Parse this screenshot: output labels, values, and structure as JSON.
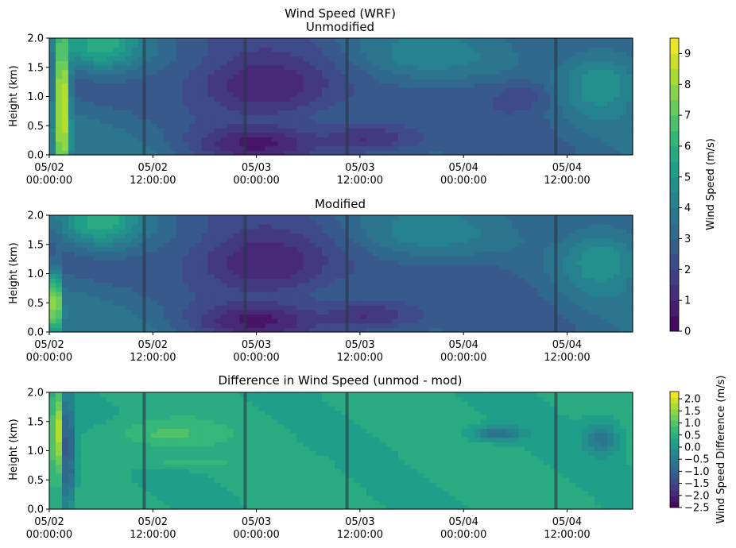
{
  "figure_title": "Wind Speed (WRF)",
  "chart_data": [
    {
      "type": "heatmap",
      "title": "Unmodified",
      "ylabel": "Height (km)",
      "xlabel": "",
      "ylim": [
        0,
        2.0
      ],
      "yticks": [
        "0.0",
        "0.5",
        "1.0",
        "1.5",
        "2.0"
      ],
      "xticks": [
        {
          "date": "05/02",
          "time": "00:00:00"
        },
        {
          "date": "05/02",
          "time": "12:00:00"
        },
        {
          "date": "05/03",
          "time": "00:00:00"
        },
        {
          "date": "05/03",
          "time": "12:00:00"
        },
        {
          "date": "05/04",
          "time": "00:00:00"
        },
        {
          "date": "05/04",
          "time": "12:00:00"
        }
      ],
      "vertical_markers_hours": [
        11,
        22.7,
        34.5,
        58.7
      ],
      "colormap": "viridis",
      "value_range": [
        0,
        9.5
      ],
      "features": [
        {
          "x": 1.5,
          "y": 1.0,
          "rx": 0.8,
          "ry": 2.0,
          "v": 9.5
        },
        {
          "x": 6,
          "y": 1.9,
          "rx": 5,
          "ry": 0.45,
          "v": 6.0
        },
        {
          "x": 25,
          "y": 1.2,
          "rx": 10,
          "ry": 0.7,
          "v": 0.8
        },
        {
          "x": 24,
          "y": 0.2,
          "rx": 7,
          "ry": 0.3,
          "v": 0.6
        },
        {
          "x": 37,
          "y": 0.3,
          "rx": 6,
          "ry": 0.25,
          "v": 1.2
        },
        {
          "x": 48,
          "y": 0.8,
          "rx": 8,
          "ry": 0.6,
          "v": 2.5
        },
        {
          "x": 55,
          "y": 1.0,
          "rx": 4,
          "ry": 0.3,
          "v": 2.0
        },
        {
          "x": 64,
          "y": 1.2,
          "rx": 5,
          "ry": 0.6,
          "v": 5.0
        },
        {
          "x": 44,
          "y": 1.7,
          "rx": 8,
          "ry": 0.4,
          "v": 4.2
        }
      ]
    },
    {
      "type": "heatmap",
      "title": "Modified",
      "ylabel": "Height (km)",
      "xlabel": "",
      "ylim": [
        0,
        2.0
      ],
      "yticks": [
        "0.0",
        "0.5",
        "1.0",
        "1.5",
        "2.0"
      ],
      "xticks": [
        {
          "date": "05/02",
          "time": "00:00:00"
        },
        {
          "date": "05/02",
          "time": "12:00:00"
        },
        {
          "date": "05/03",
          "time": "00:00:00"
        },
        {
          "date": "05/03",
          "time": "12:00:00"
        },
        {
          "date": "05/04",
          "time": "00:00:00"
        },
        {
          "date": "05/04",
          "time": "12:00:00"
        }
      ],
      "vertical_markers_hours": [
        11,
        22.7,
        34.5,
        58.7
      ],
      "colormap": "viridis",
      "value_range": [
        0,
        9.5
      ],
      "features": [
        {
          "x": 0.7,
          "y": 0.5,
          "rx": 0.6,
          "ry": 0.5,
          "v": 9.5
        },
        {
          "x": 6,
          "y": 1.9,
          "rx": 5,
          "ry": 0.45,
          "v": 6.0
        },
        {
          "x": 25,
          "y": 1.2,
          "rx": 10,
          "ry": 0.7,
          "v": 0.8
        },
        {
          "x": 24,
          "y": 0.2,
          "rx": 7,
          "ry": 0.3,
          "v": 0.6
        },
        {
          "x": 37,
          "y": 0.3,
          "rx": 6,
          "ry": 0.25,
          "v": 1.2
        },
        {
          "x": 48,
          "y": 0.8,
          "rx": 8,
          "ry": 0.6,
          "v": 2.5
        },
        {
          "x": 64,
          "y": 1.2,
          "rx": 5,
          "ry": 0.6,
          "v": 5.0
        },
        {
          "x": 44,
          "y": 1.7,
          "rx": 8,
          "ry": 0.4,
          "v": 4.2
        }
      ]
    },
    {
      "type": "heatmap",
      "title": "Difference in Wind Speed (unmod - mod)",
      "ylabel": "Height (km)",
      "xlabel": "",
      "ylim": [
        0,
        2.0
      ],
      "yticks": [
        "0.0",
        "0.5",
        "1.0",
        "1.5",
        "2.0"
      ],
      "xticks": [
        {
          "date": "05/02",
          "time": "00:00:00"
        },
        {
          "date": "05/02",
          "time": "12:00:00"
        },
        {
          "date": "05/03",
          "time": "00:00:00"
        },
        {
          "date": "05/03",
          "time": "12:00:00"
        },
        {
          "date": "05/04",
          "time": "00:00:00"
        },
        {
          "date": "05/04",
          "time": "12:00:00"
        }
      ],
      "vertical_markers_hours": [
        11,
        22.7,
        34.5,
        58.7
      ],
      "colormap": "viridis",
      "value_range": [
        -2.5,
        2.3
      ],
      "features": [
        {
          "x": 0.9,
          "y": 1.3,
          "rx": 0.5,
          "ry": 0.7,
          "v": 2.3
        },
        {
          "x": 1.6,
          "y": 1.0,
          "rx": 0.3,
          "ry": 1.0,
          "v": -2.5
        },
        {
          "x": 2.5,
          "y": 1.0,
          "rx": 0.6,
          "ry": 1.0,
          "v": -1.0
        },
        {
          "x": 14,
          "y": 1.3,
          "rx": 6,
          "ry": 0.25,
          "v": 0.9
        },
        {
          "x": 16,
          "y": 0.8,
          "rx": 10,
          "ry": 0.1,
          "v": 0.6
        },
        {
          "x": 52,
          "y": 1.3,
          "rx": 3,
          "ry": 0.12,
          "v": -0.8
        },
        {
          "x": 64,
          "y": 1.2,
          "rx": 2,
          "ry": 0.3,
          "v": -0.6
        }
      ]
    }
  ],
  "colorbars": [
    {
      "label": "Wind Speed (m/s)",
      "range": [
        0,
        9.5
      ],
      "ticks": [
        "0",
        "1",
        "2",
        "3",
        "4",
        "5",
        "6",
        "7",
        "8",
        "9"
      ],
      "levels": 19
    },
    {
      "label": "Wind Speed Difference (m/s)",
      "range": [
        -2.5,
        2.3
      ],
      "ticks": [
        "−2.5",
        "−2.0",
        "−1.5",
        "−1.0",
        "−0.5",
        "0.0",
        "0.5",
        "1.0",
        "1.5",
        "2.0"
      ],
      "levels": 20
    }
  ]
}
